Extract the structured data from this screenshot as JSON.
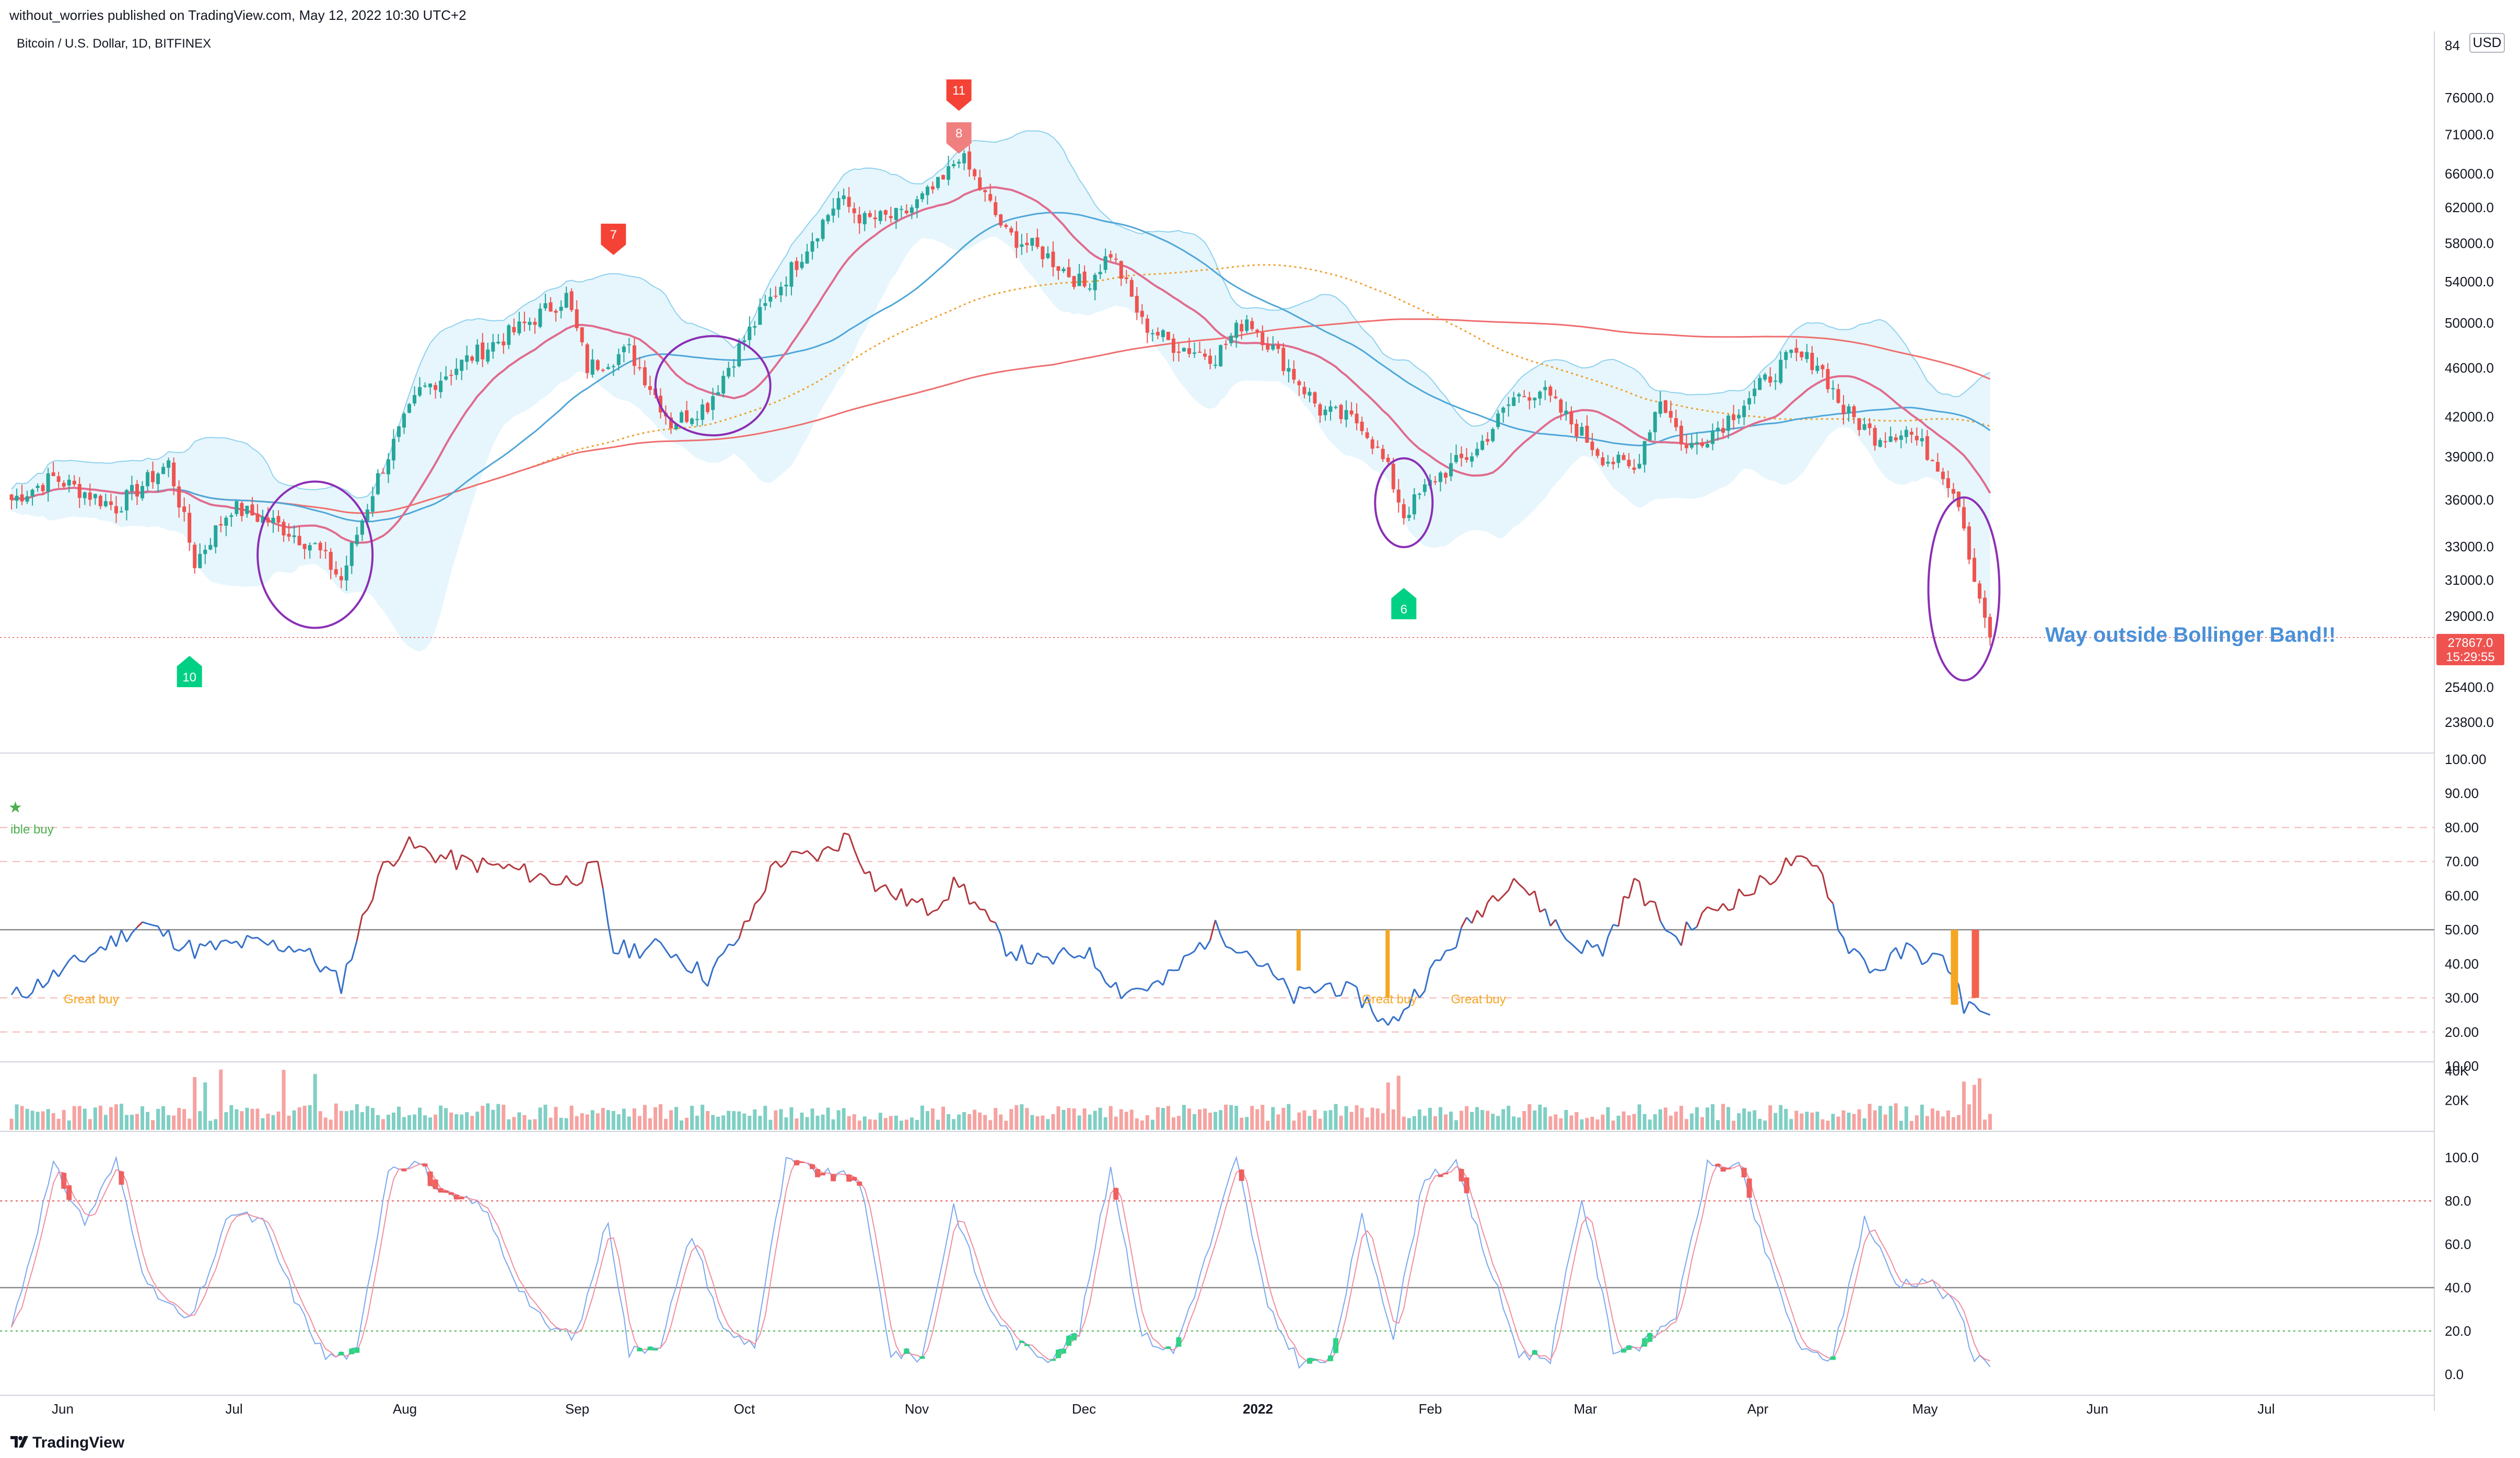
{
  "header": {
    "publisher_line": "without_worries published on TradingView.com, May 12, 2022 10:30 UTC+2"
  },
  "symbol_line": "Bitcoin / U.S. Dollar, 1D, BITFINEX",
  "currency_badge": "USD",
  "footer": {
    "brand": "TradingView"
  },
  "annotation": "Way outside Bollinger Band!!",
  "price_tag": {
    "price": "27867.0",
    "countdown": "15:29:55"
  },
  "colors": {
    "up": "#26a69a",
    "down": "#ef5350",
    "rsi_high": "#b2373d",
    "rsi_low": "#3570c9",
    "bb_fill": "#e0f4fb",
    "bb_line": "#8fd1ee",
    "ma20": "#e06c8e",
    "ma50": "#4fa6d9",
    "ma200": "#ef6e6e",
    "ma_dotted": "#f0a030",
    "circle": "#8b2fb5",
    "annotation": "#4a90d9",
    "great_buy": "#f5a623"
  },
  "chart_data": [
    {
      "type": "candlestick",
      "panel": "price",
      "title": "Bitcoin / U.S. Dollar, 1D, BITFINEX",
      "x_labels": [
        "Jun",
        "Jul",
        "Aug",
        "Sep",
        "Oct",
        "Nov",
        "Dec",
        "2022",
        "Feb",
        "Mar",
        "Apr",
        "May",
        "Jun",
        "Jul"
      ],
      "y_ticks": [
        "76000.0",
        "71000.0",
        "66000.0",
        "62000.0",
        "58000.0",
        "54000.0",
        "50000.0",
        "46000.0",
        "42000.0",
        "39000.0",
        "36000.0",
        "33000.0",
        "31000.0",
        "29000.0",
        "25400.0",
        "23800.0"
      ],
      "scale": "log",
      "y_range": [
        22500,
        86000
      ],
      "close_series_anchor": [
        [
          0,
          36000
        ],
        [
          8,
          37500
        ],
        [
          20,
          35500
        ],
        [
          30,
          38500
        ],
        [
          35,
          32000
        ],
        [
          42,
          35500
        ],
        [
          50,
          34500
        ],
        [
          58,
          33000
        ],
        [
          63,
          31000
        ],
        [
          70,
          37500
        ],
        [
          78,
          44000
        ],
        [
          88,
          47000
        ],
        [
          97,
          49500
        ],
        [
          106,
          52500
        ],
        [
          110,
          46000
        ],
        [
          118,
          47500
        ],
        [
          126,
          41500
        ],
        [
          133,
          43000
        ],
        [
          140,
          48500
        ],
        [
          150,
          56000
        ],
        [
          158,
          63000
        ],
        [
          163,
          60500
        ],
        [
          170,
          61000
        ],
        [
          178,
          65000
        ],
        [
          181,
          68500
        ],
        [
          190,
          59000
        ],
        [
          197,
          57000
        ],
        [
          205,
          53500
        ],
        [
          210,
          57000
        ],
        [
          216,
          50000
        ],
        [
          222,
          48000
        ],
        [
          230,
          47000
        ],
        [
          236,
          50500
        ],
        [
          243,
          46500
        ],
        [
          250,
          42500
        ],
        [
          258,
          41500
        ],
        [
          263,
          38000
        ],
        [
          266,
          35000
        ],
        [
          272,
          37500
        ],
        [
          280,
          39500
        ],
        [
          287,
          43500
        ],
        [
          292,
          44200
        ],
        [
          298,
          41500
        ],
        [
          304,
          39000
        ],
        [
          310,
          38000
        ],
        [
          315,
          43500
        ],
        [
          320,
          39500
        ],
        [
          327,
          41500
        ],
        [
          333,
          44000
        ],
        [
          340,
          47000
        ],
        [
          345,
          46500
        ],
        [
          350,
          42500
        ],
        [
          356,
          40500
        ],
        [
          362,
          41000
        ],
        [
          368,
          38500
        ],
        [
          372,
          36000
        ],
        [
          375,
          31000
        ],
        [
          378,
          27867
        ]
      ],
      "last_price": 27867.0,
      "indicators": [
        "Bollinger Bands",
        "MA 20",
        "MA 50",
        "MA 200",
        "MA (dotted)"
      ],
      "sequential_counts": [
        {
          "label": "10",
          "kind": "buy",
          "day": 34
        },
        {
          "label": "7",
          "kind": "sell",
          "day": 115
        },
        {
          "label": "8",
          "kind": "sell",
          "day": 181
        },
        {
          "label": "11",
          "kind": "sell",
          "day": 181
        },
        {
          "label": "6",
          "kind": "buy",
          "day": 266
        }
      ]
    },
    {
      "type": "line",
      "panel": "rsi",
      "y_ticks": [
        "100.00",
        "90.00",
        "80.00",
        "70.00",
        "60.00",
        "50.00",
        "40.00",
        "30.00",
        "20.00",
        "10.00"
      ],
      "y_range": [
        10,
        100
      ],
      "levels": [
        80,
        70,
        50,
        30,
        20
      ],
      "labels": [
        {
          "text": "Great buy",
          "day": 5
        },
        {
          "text": "Great buy",
          "day": 253
        },
        {
          "text": "Great buy",
          "day": 270
        },
        {
          "text": "ible buy",
          "day": 0
        }
      ],
      "anchor": [
        [
          0,
          30
        ],
        [
          10,
          38
        ],
        [
          25,
          52
        ],
        [
          35,
          44
        ],
        [
          45,
          46
        ],
        [
          55,
          45
        ],
        [
          63,
          34
        ],
        [
          70,
          66
        ],
        [
          75,
          75
        ],
        [
          85,
          70
        ],
        [
          95,
          68
        ],
        [
          105,
          64
        ],
        [
          112,
          68
        ],
        [
          115,
          44
        ],
        [
          125,
          45
        ],
        [
          133,
          36
        ],
        [
          140,
          50
        ],
        [
          146,
          70
        ],
        [
          155,
          72
        ],
        [
          160,
          78
        ],
        [
          165,
          63
        ],
        [
          175,
          56
        ],
        [
          181,
          64
        ],
        [
          190,
          45
        ],
        [
          197,
          40
        ],
        [
          205,
          44
        ],
        [
          212,
          32
        ],
        [
          220,
          34
        ],
        [
          230,
          50
        ],
        [
          236,
          44
        ],
        [
          245,
          30
        ],
        [
          252,
          34
        ],
        [
          259,
          29
        ],
        [
          263,
          21
        ],
        [
          270,
          35
        ],
        [
          280,
          55
        ],
        [
          287,
          66
        ],
        [
          292,
          57
        ],
        [
          298,
          46
        ],
        [
          304,
          44
        ],
        [
          310,
          64
        ],
        [
          318,
          47
        ],
        [
          325,
          56
        ],
        [
          333,
          62
        ],
        [
          340,
          70
        ],
        [
          346,
          67
        ],
        [
          350,
          47
        ],
        [
          356,
          38
        ],
        [
          362,
          44
        ],
        [
          370,
          40
        ],
        [
          373,
          28
        ],
        [
          378,
          25
        ]
      ]
    },
    {
      "type": "bar",
      "panel": "volume",
      "y_ticks": [
        "40K",
        "20K"
      ],
      "y_range": [
        0,
        45000
      ]
    },
    {
      "type": "line",
      "panel": "stochastic",
      "y_ticks": [
        "100.0",
        "80.0",
        "60.0",
        "40.0",
        "20.0",
        "0.0"
      ],
      "y_range": [
        0,
        100
      ],
      "levels": [
        80,
        40,
        20
      ],
      "anchor": [
        [
          0,
          22
        ],
        [
          8,
          96
        ],
        [
          14,
          70
        ],
        [
          20,
          98
        ],
        [
          26,
          40
        ],
        [
          34,
          24
        ],
        [
          42,
          75
        ],
        [
          48,
          70
        ],
        [
          55,
          30
        ],
        [
          60,
          8
        ],
        [
          66,
          10
        ],
        [
          72,
          96
        ],
        [
          78,
          98
        ],
        [
          82,
          82
        ],
        [
          90,
          78
        ],
        [
          96,
          45
        ],
        [
          102,
          22
        ],
        [
          108,
          18
        ],
        [
          114,
          72
        ],
        [
          118,
          10
        ],
        [
          124,
          15
        ],
        [
          130,
          65
        ],
        [
          136,
          20
        ],
        [
          142,
          14
        ],
        [
          148,
          98
        ],
        [
          156,
          92
        ],
        [
          162,
          90
        ],
        [
          168,
          10
        ],
        [
          174,
          8
        ],
        [
          180,
          78
        ],
        [
          186,
          34
        ],
        [
          192,
          14
        ],
        [
          198,
          8
        ],
        [
          204,
          20
        ],
        [
          210,
          96
        ],
        [
          216,
          18
        ],
        [
          222,
          10
        ],
        [
          228,
          52
        ],
        [
          234,
          100
        ],
        [
          240,
          30
        ],
        [
          246,
          6
        ],
        [
          252,
          6
        ],
        [
          258,
          72
        ],
        [
          264,
          18
        ],
        [
          270,
          92
        ],
        [
          276,
          96
        ],
        [
          282,
          52
        ],
        [
          288,
          10
        ],
        [
          294,
          8
        ],
        [
          300,
          82
        ],
        [
          306,
          12
        ],
        [
          312,
          14
        ],
        [
          318,
          28
        ],
        [
          324,
          96
        ],
        [
          330,
          96
        ],
        [
          336,
          50
        ],
        [
          342,
          10
        ],
        [
          348,
          8
        ],
        [
          354,
          72
        ],
        [
          360,
          42
        ],
        [
          366,
          44
        ],
        [
          372,
          30
        ],
        [
          375,
          8
        ],
        [
          378,
          6
        ]
      ]
    }
  ]
}
